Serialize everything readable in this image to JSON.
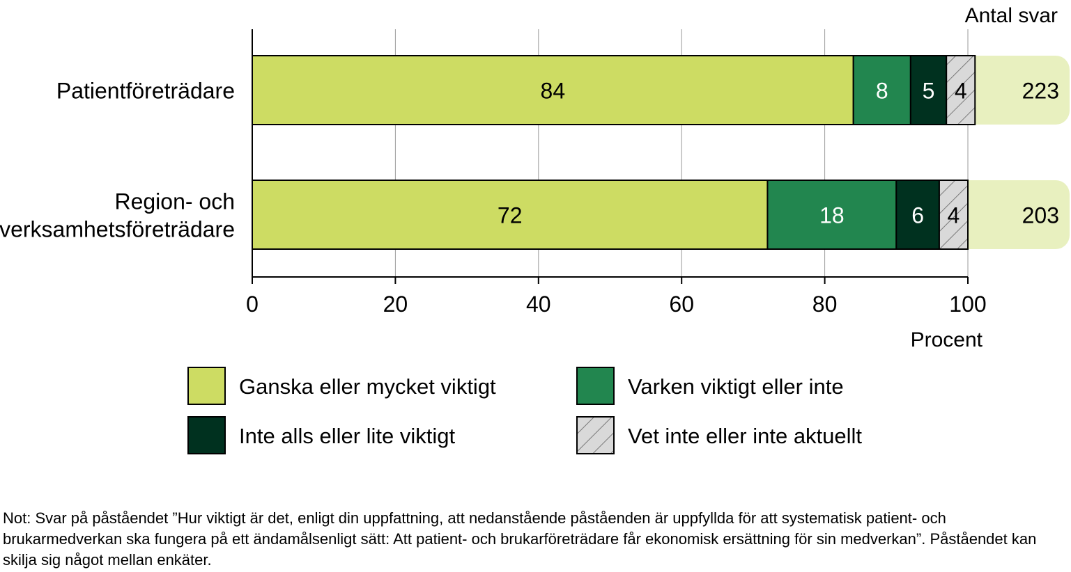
{
  "chart_data": {
    "type": "bar",
    "orientation": "horizontal",
    "stacked": true,
    "categories": [
      [
        "Patientföreträdare"
      ],
      [
        "Region- och",
        "verksamhetsföreträdare"
      ]
    ],
    "series": [
      {
        "name": "Ganska eller mycket viktigt",
        "values": [
          84,
          72
        ],
        "color": "#cddc63",
        "label_color": "#000000"
      },
      {
        "name": "Varken viktigt eller inte",
        "values": [
          8,
          18
        ],
        "color": "#22864f",
        "label_color": "#ffffff"
      },
      {
        "name": "Inte alls eller lite viktigt",
        "values": [
          5,
          6
        ],
        "color": "#00311f",
        "label_color": "#ffffff"
      },
      {
        "name": "Vet inte eller inte aktuellt",
        "values": [
          4,
          4
        ],
        "color": "#d9d9d9",
        "pattern": "hatch",
        "label_color": "#000000"
      }
    ],
    "antal_svar_label": "Antal svar",
    "antal_svar": [
      223,
      203
    ],
    "antal_svar_color": "#e8f0bf",
    "xlim": [
      0,
      100
    ],
    "xticks": [
      0,
      20,
      40,
      60,
      80,
      100
    ],
    "xlabel": "Procent",
    "grid": true,
    "legend_position": "bottom"
  },
  "note": "Not: Svar på påståendet ”Hur viktigt är det, enligt din uppfattning, att nedanstående påståenden är uppfyllda för att systematisk patient- och brukarmedverkan ska fungera på ett ändamålsenligt sätt: Att patient- och brukarföreträdare får ekonomisk ersättning för sin medverkan”. Påståendet kan skilja sig något mellan enkäter."
}
